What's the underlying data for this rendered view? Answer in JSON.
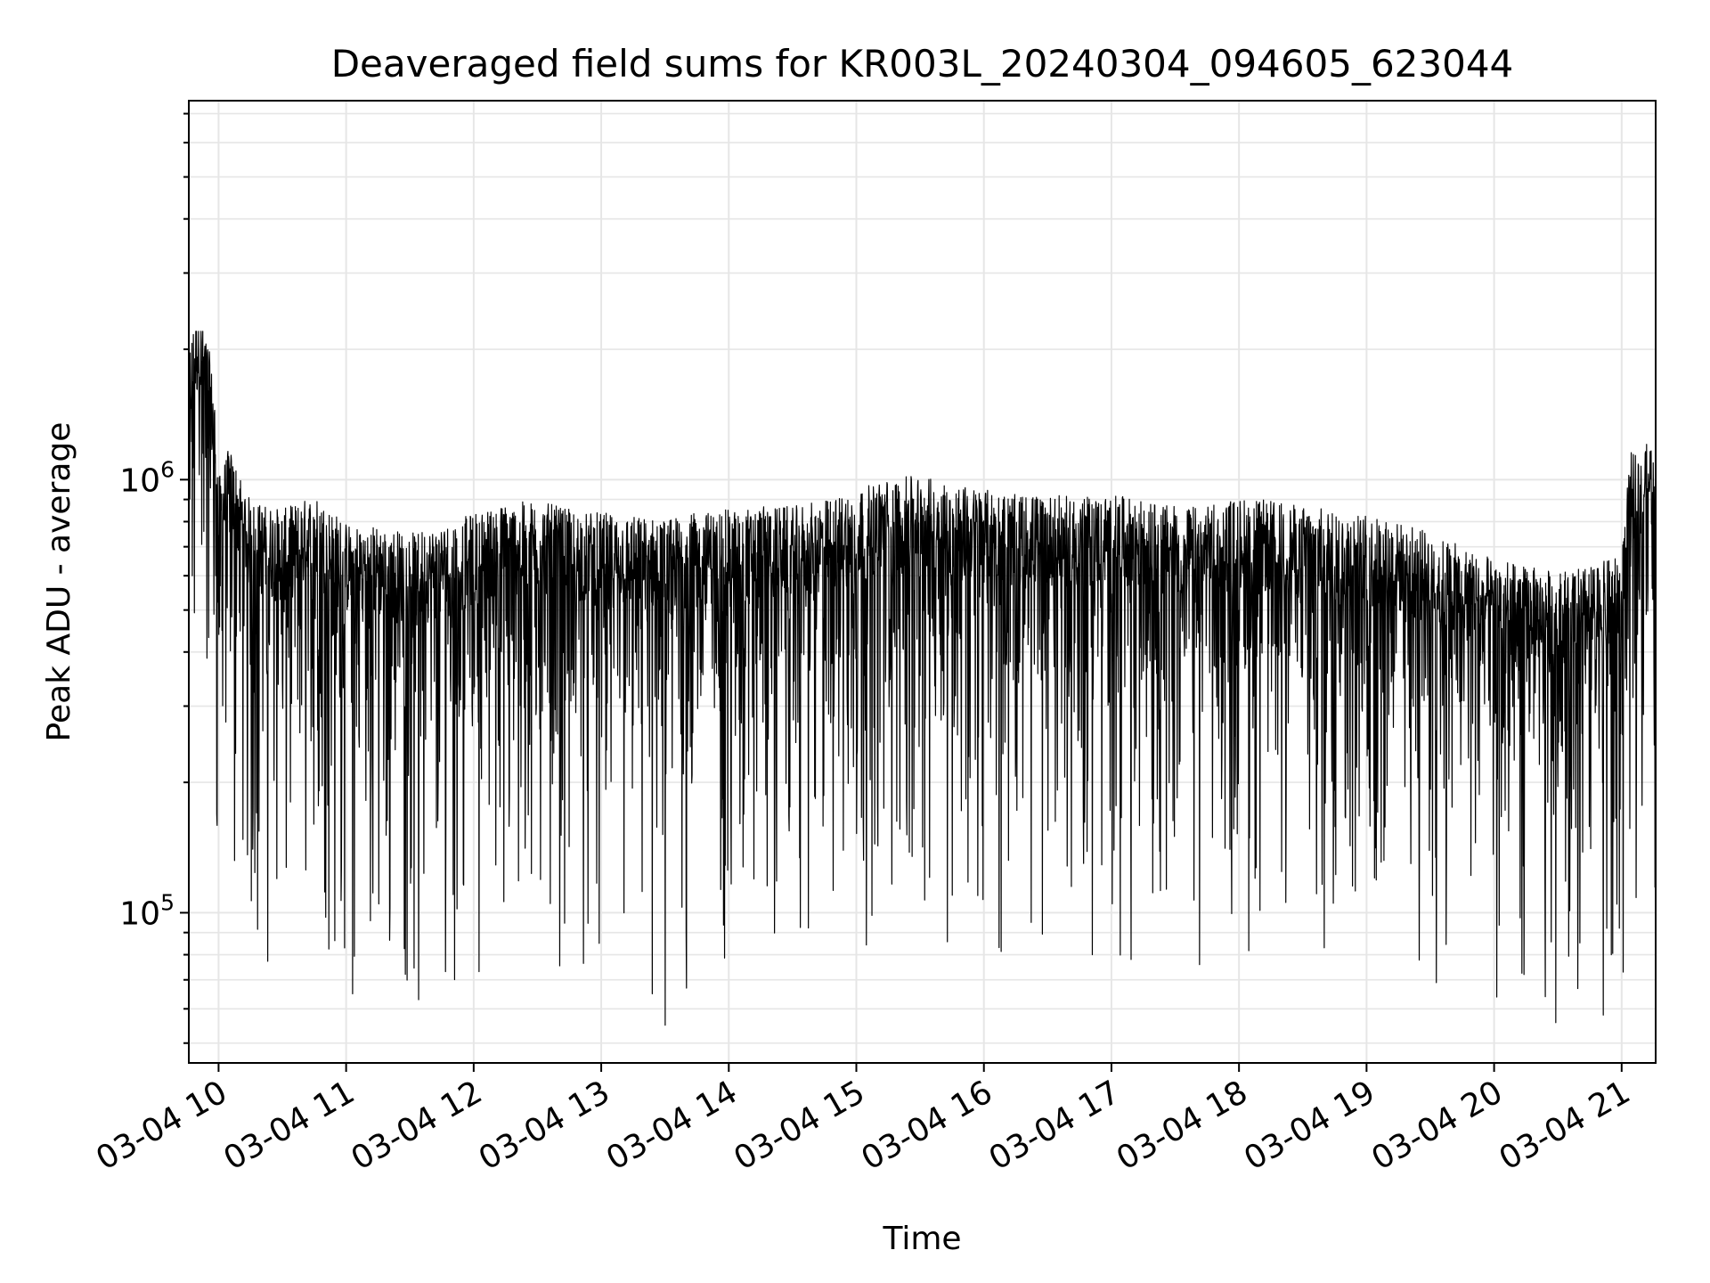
{
  "chart_data": {
    "type": "line",
    "title": "Deaveraged field sums for KR003L_20240304_094605_623044",
    "xlabel": "Time",
    "ylabel": "Peak ADU - average",
    "x_scale": "time",
    "y_scale": "log",
    "x_range": [
      "2024-03-04T09:46",
      "2024-03-04T21:16"
    ],
    "ylim": [
      45000,
      7500000
    ],
    "x_ticks": [
      {
        "time": "2024-03-04T10:00",
        "label": "03-04 10"
      },
      {
        "time": "2024-03-04T11:00",
        "label": "03-04 11"
      },
      {
        "time": "2024-03-04T12:00",
        "label": "03-04 12"
      },
      {
        "time": "2024-03-04T13:00",
        "label": "03-04 13"
      },
      {
        "time": "2024-03-04T14:00",
        "label": "03-04 14"
      },
      {
        "time": "2024-03-04T15:00",
        "label": "03-04 15"
      },
      {
        "time": "2024-03-04T16:00",
        "label": "03-04 16"
      },
      {
        "time": "2024-03-04T17:00",
        "label": "03-04 17"
      },
      {
        "time": "2024-03-04T18:00",
        "label": "03-04 18"
      },
      {
        "time": "2024-03-04T19:00",
        "label": "03-04 19"
      },
      {
        "time": "2024-03-04T20:00",
        "label": "03-04 20"
      },
      {
        "time": "2024-03-04T21:00",
        "label": "03-04 21"
      }
    ],
    "y_ticks": [
      {
        "value": 100000,
        "base": "10",
        "exp": "5"
      },
      {
        "value": 1000000,
        "base": "10",
        "exp": "6"
      }
    ],
    "grid": true,
    "series": [
      {
        "color": "#000000",
        "points": [
          [
            "2024-03-04T09:46",
            1450000
          ],
          [
            "2024-03-04T09:50",
            1800000
          ],
          [
            "2024-03-04T09:55",
            1500000
          ],
          [
            "2024-03-04T09:58",
            1150000
          ],
          [
            "2024-03-04T10:00",
            720000
          ],
          [
            "2024-03-04T10:05",
            850000
          ],
          [
            "2024-03-04T10:15",
            640000
          ],
          [
            "2024-03-04T10:30",
            610000
          ],
          [
            "2024-03-04T10:45",
            660000
          ],
          [
            "2024-03-04T11:00",
            570000
          ],
          [
            "2024-03-04T11:15",
            560000
          ],
          [
            "2024-03-04T11:30",
            540000
          ],
          [
            "2024-03-04T11:45",
            560000
          ],
          [
            "2024-03-04T12:00",
            600000
          ],
          [
            "2024-03-04T12:15",
            630000
          ],
          [
            "2024-03-04T12:30",
            640000
          ],
          [
            "2024-03-04T12:45",
            610000
          ],
          [
            "2024-03-04T13:00",
            600000
          ],
          [
            "2024-03-04T13:15",
            590000
          ],
          [
            "2024-03-04T13:30",
            580000
          ],
          [
            "2024-03-04T13:45",
            600000
          ],
          [
            "2024-03-04T14:00",
            610000
          ],
          [
            "2024-03-04T14:15",
            620000
          ],
          [
            "2024-03-04T14:30",
            620000
          ],
          [
            "2024-03-04T14:45",
            640000
          ],
          [
            "2024-03-04T15:00",
            680000
          ],
          [
            "2024-03-04T15:15",
            720000
          ],
          [
            "2024-03-04T15:30",
            730000
          ],
          [
            "2024-03-04T15:45",
            700000
          ],
          [
            "2024-03-04T16:00",
            680000
          ],
          [
            "2024-03-04T16:15",
            660000
          ],
          [
            "2024-03-04T16:30",
            660000
          ],
          [
            "2024-03-04T16:45",
            650000
          ],
          [
            "2024-03-04T17:00",
            660000
          ],
          [
            "2024-03-04T17:15",
            640000
          ],
          [
            "2024-03-04T17:30",
            620000
          ],
          [
            "2024-03-04T17:45",
            620000
          ],
          [
            "2024-03-04T18:00",
            650000
          ],
          [
            "2024-03-04T18:15",
            640000
          ],
          [
            "2024-03-04T18:30",
            620000
          ],
          [
            "2024-03-04T18:45",
            610000
          ],
          [
            "2024-03-04T19:00",
            590000
          ],
          [
            "2024-03-04T19:15",
            570000
          ],
          [
            "2024-03-04T19:30",
            540000
          ],
          [
            "2024-03-04T19:45",
            500000
          ],
          [
            "2024-03-04T20:00",
            470000
          ],
          [
            "2024-03-04T20:15",
            450000
          ],
          [
            "2024-03-04T20:30",
            440000
          ],
          [
            "2024-03-04T20:45",
            450000
          ],
          [
            "2024-03-04T21:00",
            480000
          ],
          [
            "2024-03-04T21:04",
            820000
          ],
          [
            "2024-03-04T21:10",
            880000
          ],
          [
            "2024-03-04T21:16",
            900000
          ]
        ],
        "noted_minima": [
          [
            "2024-03-04T11:03",
            65000
          ],
          [
            "2024-03-04T11:34",
            63000
          ],
          [
            "2024-03-04T12:59",
            85000
          ],
          [
            "2024-03-04T13:24",
            65000
          ],
          [
            "2024-03-04T13:30",
            55000
          ],
          [
            "2024-03-04T13:40",
            67000
          ],
          [
            "2024-03-04T15:32",
            107000
          ],
          [
            "2024-03-04T16:51",
            80000
          ],
          [
            "2024-03-04T18:40",
            83000
          ],
          [
            "2024-03-04T20:14",
            72000
          ],
          [
            "2024-03-04T20:24",
            64000
          ],
          [
            "2024-03-04T20:55",
            80000
          ]
        ]
      }
    ]
  }
}
